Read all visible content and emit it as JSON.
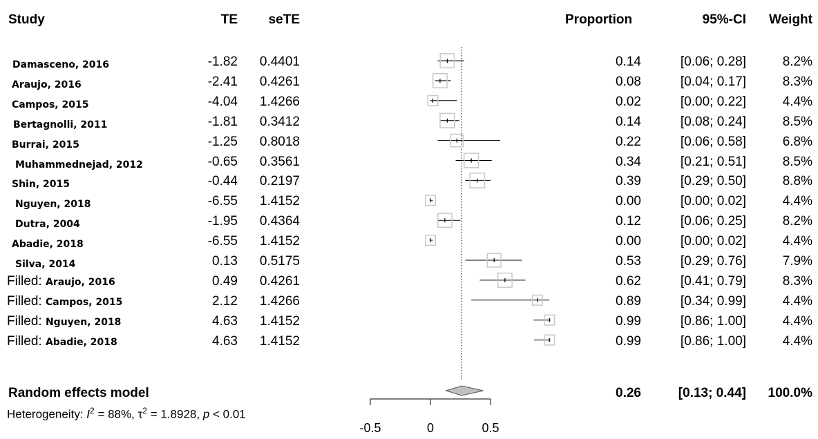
{
  "headers": {
    "study": "Study",
    "te": "TE",
    "sete": "seTE",
    "proportion": "Proportion",
    "ci": "95%-CI",
    "weight": "Weight"
  },
  "studies": [
    {
      "prefix": "",
      "name": "Damasceno, 2016",
      "te": "-1.82",
      "sete": "0.4401",
      "prop": "0.14",
      "ci": "[0.06; 0.28]",
      "weight": "8.2%"
    },
    {
      "prefix": "",
      "name": "Araujo, 2016",
      "te": "-2.41",
      "sete": "0.4261",
      "prop": "0.08",
      "ci": "[0.04; 0.17]",
      "weight": "8.3%"
    },
    {
      "prefix": "",
      "name": "Campos, 2015",
      "te": "-4.04",
      "sete": "1.4266",
      "prop": "0.02",
      "ci": "[0.00; 0.22]",
      "weight": "4.4%"
    },
    {
      "prefix": "",
      "name": "Bertagnolli, 2011",
      "te": "-1.81",
      "sete": "0.3412",
      "prop": "0.14",
      "ci": "[0.08; 0.24]",
      "weight": "8.5%"
    },
    {
      "prefix": "",
      "name": "Burrai, 2015",
      "te": "-1.25",
      "sete": "0.8018",
      "prop": "0.22",
      "ci": "[0.06; 0.58]",
      "weight": "6.8%"
    },
    {
      "prefix": "",
      "name": "Muhammednejad, 2012",
      "te": "-0.65",
      "sete": "0.3561",
      "prop": "0.34",
      "ci": "[0.21; 0.51]",
      "weight": "8.5%"
    },
    {
      "prefix": "",
      "name": "Shin, 2015",
      "te": "-0.44",
      "sete": "0.2197",
      "prop": "0.39",
      "ci": "[0.29; 0.50]",
      "weight": "8.8%"
    },
    {
      "prefix": "",
      "name": "Nguyen, 2018",
      "te": "-6.55",
      "sete": "1.4152",
      "prop": "0.00",
      "ci": "[0.00; 0.02]",
      "weight": "4.4%"
    },
    {
      "prefix": "",
      "name": "Dutra, 2004",
      "te": "-1.95",
      "sete": "0.4364",
      "prop": "0.12",
      "ci": "[0.06; 0.25]",
      "weight": "8.2%"
    },
    {
      "prefix": "",
      "name": "Abadie, 2018",
      "te": "-6.55",
      "sete": "1.4152",
      "prop": "0.00",
      "ci": "[0.00; 0.02]",
      "weight": "4.4%"
    },
    {
      "prefix": "",
      "name": "Silva, 2014",
      "te": "0.13",
      "sete": "0.5175",
      "prop": "0.53",
      "ci": "[0.29; 0.76]",
      "weight": "7.9%"
    },
    {
      "prefix": "Filled: ",
      "name": "Araujo, 2016",
      "te": "0.49",
      "sete": "0.4261",
      "prop": "0.62",
      "ci": "[0.41; 0.79]",
      "weight": "8.3%"
    },
    {
      "prefix": "Filled: ",
      "name": "Campos, 2015",
      "te": "2.12",
      "sete": "1.4266",
      "prop": "0.89",
      "ci": "[0.34; 0.99]",
      "weight": "4.4%"
    },
    {
      "prefix": "Filled: ",
      "name": "Nguyen, 2018",
      "te": "4.63",
      "sete": "1.4152",
      "prop": "0.99",
      "ci": "[0.86; 1.00]",
      "weight": "4.4%"
    },
    {
      "prefix": "Filled: ",
      "name": "Abadie, 2018",
      "te": "4.63",
      "sete": "1.4152",
      "prop": "0.99",
      "ci": "[0.86; 1.00]",
      "weight": "4.4%"
    }
  ],
  "summary": {
    "label": "Random effects model",
    "prop": "0.26",
    "ci": "[0.13; 0.44]",
    "weight": "100.0%",
    "heterogeneity_label": "Heterogeneity: ",
    "i2_symbol": "I",
    "i2_value": " = 88%, ",
    "tau2_symbol": "τ",
    "tau2_value": " = 1.8928, ",
    "p_symbol": "p",
    "p_value": " < 0.01"
  },
  "chart_data": {
    "type": "forest",
    "x_ticks": [
      "-0.5",
      "0",
      "0.5"
    ],
    "xlim": [
      -0.5,
      0.5
    ],
    "reference_line": 0.26,
    "summary": {
      "est": 0.26,
      "lower": 0.13,
      "upper": 0.44
    },
    "points": [
      {
        "est": 0.14,
        "lower": 0.06,
        "upper": 0.28,
        "weight": 8.2
      },
      {
        "est": 0.08,
        "lower": 0.04,
        "upper": 0.17,
        "weight": 8.3
      },
      {
        "est": 0.02,
        "lower": 0.0,
        "upper": 0.22,
        "weight": 4.4
      },
      {
        "est": 0.14,
        "lower": 0.08,
        "upper": 0.24,
        "weight": 8.5
      },
      {
        "est": 0.22,
        "lower": 0.06,
        "upper": 0.58,
        "weight": 6.8
      },
      {
        "est": 0.34,
        "lower": 0.21,
        "upper": 0.51,
        "weight": 8.5
      },
      {
        "est": 0.39,
        "lower": 0.29,
        "upper": 0.5,
        "weight": 8.8
      },
      {
        "est": 0.0,
        "lower": 0.0,
        "upper": 0.02,
        "weight": 4.4
      },
      {
        "est": 0.12,
        "lower": 0.06,
        "upper": 0.25,
        "weight": 8.2
      },
      {
        "est": 0.0,
        "lower": 0.0,
        "upper": 0.02,
        "weight": 4.4
      },
      {
        "est": 0.53,
        "lower": 0.29,
        "upper": 0.76,
        "weight": 7.9
      },
      {
        "est": 0.62,
        "lower": 0.41,
        "upper": 0.79,
        "weight": 8.3
      },
      {
        "est": 0.89,
        "lower": 0.34,
        "upper": 0.99,
        "weight": 4.4
      },
      {
        "est": 0.99,
        "lower": 0.86,
        "upper": 1.0,
        "weight": 4.4
      },
      {
        "est": 0.99,
        "lower": 0.86,
        "upper": 1.0,
        "weight": 4.4
      }
    ],
    "colors": {
      "box": "#c8c8c8",
      "diamond": "#c0c0c0"
    }
  }
}
